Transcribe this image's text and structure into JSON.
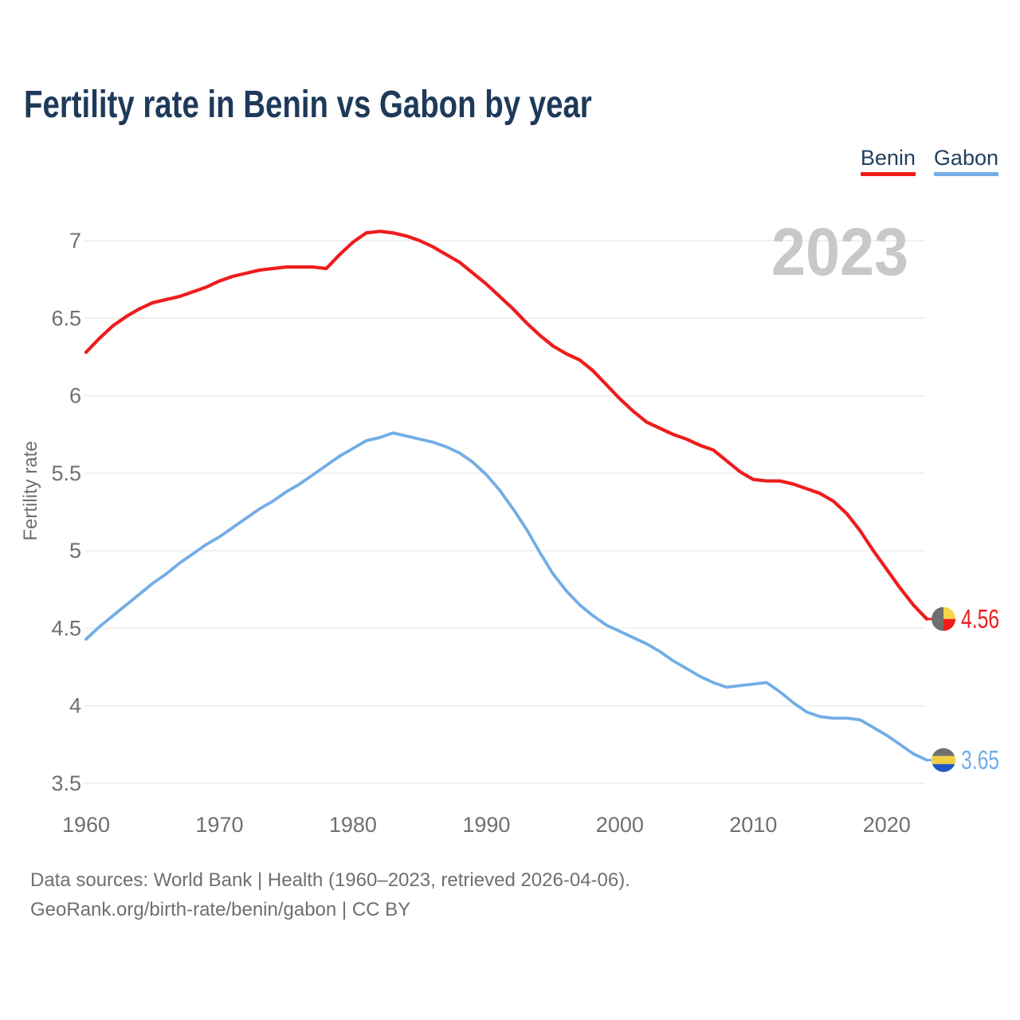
{
  "header": {
    "title": "Fertility rate in Benin vs Gabon by year"
  },
  "legend": {
    "items": [
      {
        "label": "Benin",
        "color": "#ee1c1d"
      },
      {
        "label": "Gabon",
        "color": "#72ade5"
      }
    ]
  },
  "footer": {
    "line1": "Data sources: World Bank | Health (1960–2023, retrieved 2026-04-06).",
    "line2": "GeoRank.org/birth-rate/benin/gabon | CC BY"
  },
  "chart_data": {
    "type": "line",
    "title": "Fertility rate in Benin vs Gabon by year",
    "xlabel": "",
    "ylabel": "Fertility rate",
    "watermark": "2023",
    "grid": "horizontal",
    "legend_position": "top-right",
    "xlim": [
      1960,
      2023
    ],
    "ylim": [
      3.5,
      7.1
    ],
    "x_ticks": [
      1960,
      1970,
      1980,
      1990,
      2000,
      2010,
      2020
    ],
    "y_ticks": [
      7,
      6.5,
      6,
      5.5,
      5,
      4.5,
      4,
      3.5
    ],
    "axis_color": "#6f6f6f",
    "grid_color": "#ececec",
    "watermark_color": "#c8c8c8",
    "years": [
      1960,
      1961,
      1962,
      1963,
      1964,
      1965,
      1966,
      1967,
      1968,
      1969,
      1970,
      1971,
      1972,
      1973,
      1974,
      1975,
      1976,
      1977,
      1978,
      1979,
      1980,
      1981,
      1982,
      1983,
      1984,
      1985,
      1986,
      1987,
      1988,
      1989,
      1990,
      1991,
      1992,
      1993,
      1994,
      1995,
      1996,
      1997,
      1998,
      1999,
      2000,
      2001,
      2002,
      2003,
      2004,
      2005,
      2006,
      2007,
      2008,
      2009,
      2010,
      2011,
      2012,
      2013,
      2014,
      2015,
      2016,
      2017,
      2018,
      2019,
      2020,
      2021,
      2022,
      2023
    ],
    "series": [
      {
        "name": "Benin",
        "color": "#ee1c1d",
        "end_label": "4.56",
        "end_value": 4.56,
        "flag": {
          "layout": "benin",
          "stripes": [
            "#6f6f6f",
            "#f7d34a",
            "#ee1c1d"
          ]
        },
        "values": [
          6.28,
          6.37,
          6.45,
          6.51,
          6.56,
          6.6,
          6.62,
          6.64,
          6.67,
          6.7,
          6.74,
          6.77,
          6.79,
          6.81,
          6.82,
          6.83,
          6.83,
          6.83,
          6.82,
          6.91,
          6.99,
          7.05,
          7.06,
          7.05,
          7.03,
          7.0,
          6.96,
          6.91,
          6.86,
          6.79,
          6.72,
          6.64,
          6.56,
          6.47,
          6.39,
          6.32,
          6.27,
          6.23,
          6.16,
          6.07,
          5.98,
          5.9,
          5.83,
          5.79,
          5.75,
          5.72,
          5.68,
          5.65,
          5.58,
          5.51,
          5.46,
          5.45,
          5.45,
          5.43,
          5.4,
          5.37,
          5.32,
          5.24,
          5.13,
          5.0,
          4.88,
          4.76,
          4.65,
          4.56
        ]
      },
      {
        "name": "Gabon",
        "color": "#72ade5",
        "end_label": "3.65",
        "end_value": 3.65,
        "flag": {
          "layout": "horizontal",
          "stripes": [
            "#6f6f6f",
            "#f0cf43",
            "#2059c5"
          ]
        },
        "values": [
          4.43,
          4.51,
          4.58,
          4.65,
          4.72,
          4.79,
          4.85,
          4.92,
          4.98,
          5.04,
          5.09,
          5.15,
          5.21,
          5.27,
          5.32,
          5.38,
          5.43,
          5.49,
          5.55,
          5.61,
          5.66,
          5.71,
          5.73,
          5.76,
          5.74,
          5.72,
          5.7,
          5.67,
          5.63,
          5.57,
          5.49,
          5.39,
          5.27,
          5.14,
          4.99,
          4.85,
          4.74,
          4.65,
          4.58,
          4.52,
          4.48,
          4.44,
          4.4,
          4.35,
          4.29,
          4.24,
          4.19,
          4.15,
          4.12,
          4.13,
          4.14,
          4.15,
          4.09,
          4.02,
          3.96,
          3.93,
          3.92,
          3.92,
          3.91,
          3.86,
          3.81,
          3.75,
          3.69,
          3.65
        ]
      }
    ]
  }
}
